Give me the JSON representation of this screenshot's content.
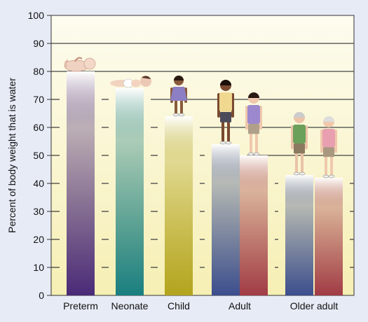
{
  "chart_data": {
    "type": "bar",
    "title": "",
    "xlabel": "",
    "ylabel": "Percent of body weight that is water",
    "ylim": [
      0,
      100
    ],
    "yticks": [
      0,
      10,
      20,
      30,
      40,
      50,
      60,
      70,
      80,
      90,
      100
    ],
    "grid": true,
    "groups": [
      {
        "label": "Preterm",
        "bars": [
          {
            "value": 80,
            "color": "#4a2a78",
            "figure": "infant"
          }
        ]
      },
      {
        "label": "Neonate",
        "bars": [
          {
            "value": 74,
            "color": "#1a7f80",
            "figure": "baby"
          }
        ]
      },
      {
        "label": "Child",
        "bars": [
          {
            "value": 64,
            "color": "#b3a41e",
            "figure": "child"
          }
        ]
      },
      {
        "label": "Adult",
        "bars": [
          {
            "value": 54,
            "color": "#3c4e8e",
            "figure": "man"
          },
          {
            "value": 50,
            "color": "#a13c46",
            "figure": "woman"
          }
        ]
      },
      {
        "label": "Older adult",
        "bars": [
          {
            "value": 43,
            "color": "#3c4e8e",
            "figure": "older-man"
          },
          {
            "value": 42,
            "color": "#a13c46",
            "figure": "older-woman"
          }
        ]
      }
    ]
  }
}
